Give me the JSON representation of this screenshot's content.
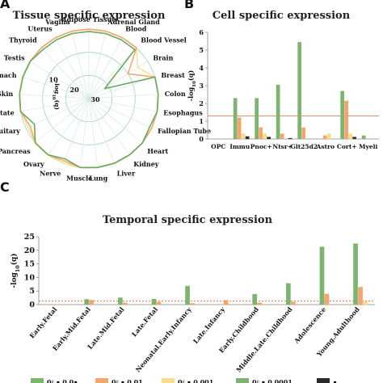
{
  "panels": {
    "a": "A",
    "b": "B",
    "c": "C"
  },
  "legend": {
    "labels": [
      "0ℓ ∎ 0.0∎",
      "0ℓ ∎ 0.01",
      "0ℓ ∎ 0.001",
      "0ℓ ∎ 0.0001",
      "∎"
    ]
  },
  "chart_data": [
    {
      "type": "radar",
      "title": "Tissue specific expression",
      "radial_label": "-log10(q)",
      "radial_ticks": [
        10,
        20,
        30
      ],
      "categories": [
        "Adipose Tissue",
        "Adrenal Gland",
        "Blood",
        "Blood Vessel",
        "Brain",
        "Breast",
        "Colon",
        "Esophagus",
        "Fallopian Tube",
        "Heart",
        "Kidney",
        "Liver",
        "Lung",
        "Muscle",
        "Nerve",
        "Ovary",
        "Pancreas",
        "Pituitary",
        "Prostate",
        "Skin",
        "Stomach",
        "Testis",
        "Thyroid",
        "Uterus",
        "Vagina"
      ],
      "highlight": "Brain",
      "highlight_color": "#e8241c",
      "series": [
        {
          "color": "#6aaa5c",
          "values": [
            1,
            1,
            1,
            1,
            22,
            0,
            0,
            0,
            1,
            0,
            0,
            0,
            0,
            0,
            2,
            0,
            0,
            4,
            0,
            0,
            0,
            0,
            1,
            1,
            1
          ]
        },
        {
          "color": "#f4a870",
          "values": [
            0,
            0,
            0,
            0,
            10,
            0,
            0,
            0,
            0,
            0,
            0,
            0,
            0,
            0,
            1,
            0,
            0,
            2,
            0,
            0,
            0,
            0,
            0,
            0,
            0
          ]
        },
        {
          "color": "#f7e39a",
          "values": [
            0,
            0,
            0,
            0,
            5,
            0,
            0,
            0,
            0,
            0,
            0,
            0,
            0,
            0,
            0,
            0,
            0,
            1,
            0,
            0,
            0,
            0,
            0,
            0,
            0
          ]
        }
      ]
    },
    {
      "type": "bar",
      "title": "Cell specific expression",
      "ylabel": "-log10(q)",
      "ylim": [
        0,
        6
      ],
      "yticks": [
        0,
        1,
        2,
        3,
        4,
        5,
        6
      ],
      "threshold": 1.3,
      "categories": [
        "OPC",
        "Immu",
        "Pnoc+",
        "Ntsr+",
        "Glt25d2",
        "Astro",
        "Cort+",
        "Myeli"
      ],
      "series": [
        {
          "color": "#7db56f",
          "values": [
            0,
            2.3,
            2.3,
            3.05,
            5.45,
            0,
            2.7,
            0.2
          ]
        },
        {
          "color": "#f4a56b",
          "values": [
            0,
            1.2,
            0.65,
            0.3,
            0.65,
            0.2,
            2.15,
            0
          ]
        },
        {
          "color": "#f7dc8a",
          "values": [
            0,
            0.3,
            0.3,
            0,
            0,
            0.3,
            0.3,
            0
          ]
        },
        {
          "color": "#2b2b2b",
          "values": [
            0,
            0.15,
            0.12,
            0.05,
            0,
            0,
            0.12,
            0
          ]
        }
      ]
    },
    {
      "type": "bar",
      "title": "Temporal specific expression",
      "ylabel": "-log10(q)",
      "ylim": [
        0,
        25
      ],
      "yticks": [
        0,
        5,
        10,
        15,
        20,
        25
      ],
      "threshold": 1.3,
      "categories": [
        "Early.Fetal",
        "Early.Mid.Fetal",
        "Late.Mid.Fetal",
        "Late.Fetal",
        "Neonatal.Early.Infancy",
        "Late.Infancy",
        "Early.Childhood",
        "Middle.Late.Childhood",
        "Adolescence",
        "Young.Adulthood"
      ],
      "series": [
        {
          "color": "#7db56f",
          "values": [
            0,
            2.0,
            2.6,
            2.1,
            6.9,
            0,
            3.9,
            7.9,
            21.3,
            22.5
          ]
        },
        {
          "color": "#f4a56b",
          "values": [
            0,
            1.7,
            0.7,
            1.0,
            0.5,
            1.7,
            0.7,
            1.0,
            4.0,
            6.5
          ]
        },
        {
          "color": "#f7dc8a",
          "values": [
            0,
            0,
            0,
            0,
            0,
            0,
            0,
            0,
            0,
            1.2
          ]
        }
      ]
    }
  ]
}
